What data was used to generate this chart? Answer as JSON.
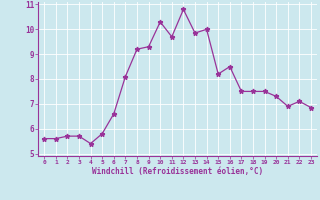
{
  "x": [
    0,
    1,
    2,
    3,
    4,
    5,
    6,
    7,
    8,
    9,
    10,
    11,
    12,
    13,
    14,
    15,
    16,
    17,
    18,
    19,
    20,
    21,
    22,
    23
  ],
  "y": [
    5.6,
    5.6,
    5.7,
    5.7,
    5.4,
    5.8,
    6.6,
    8.1,
    9.2,
    9.3,
    10.3,
    9.7,
    10.8,
    9.85,
    10.0,
    8.2,
    8.5,
    7.5,
    7.5,
    7.5,
    7.3,
    6.9,
    7.1,
    6.85
  ],
  "line_color": "#993399",
  "marker": "*",
  "marker_size": 3.5,
  "bg_color": "#cce8ee",
  "grid_color": "#ffffff",
  "xlabel": "Windchill (Refroidissement éolien,°C)",
  "xlabel_color": "#993399",
  "tick_color": "#993399",
  "ylim": [
    5,
    11
  ],
  "xlim": [
    -0.5,
    23.5
  ],
  "yticks": [
    5,
    6,
    7,
    8,
    9,
    10,
    11
  ],
  "xticks": [
    0,
    1,
    2,
    3,
    4,
    5,
    6,
    7,
    8,
    9,
    10,
    11,
    12,
    13,
    14,
    15,
    16,
    17,
    18,
    19,
    20,
    21,
    22,
    23
  ],
  "xtick_labels": [
    "0",
    "1",
    "2",
    "3",
    "4",
    "5",
    "6",
    "7",
    "8",
    "9",
    "10",
    "11",
    "12",
    "13",
    "14",
    "15",
    "16",
    "17",
    "18",
    "19",
    "20",
    "21",
    "22",
    "23"
  ]
}
